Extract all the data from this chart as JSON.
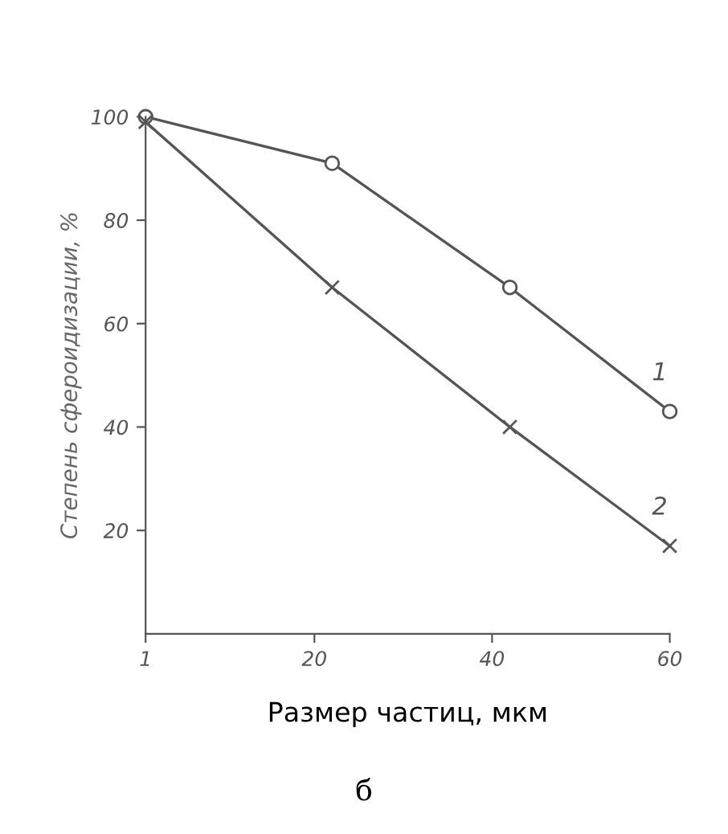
{
  "chart_data": {
    "type": "line",
    "xlabel": "Размер частиц, мкм",
    "ylabel": "Степень сфероидизации, %",
    "x": [
      1,
      22,
      42,
      60
    ],
    "series": [
      {
        "name": "1",
        "color": "#555555",
        "marker": "circle",
        "values": [
          100,
          91,
          67,
          43
        ]
      },
      {
        "name": "2",
        "color": "#555555",
        "marker": "cross",
        "values": [
          99,
          67,
          40,
          17
        ]
      }
    ],
    "xlim": [
      1,
      60
    ],
    "xticks": [
      1,
      20,
      40,
      60
    ],
    "ylim": [
      0,
      100
    ],
    "yticks": [
      20,
      40,
      60,
      80,
      100
    ],
    "grid": false,
    "legend": false,
    "annotations": [
      "б"
    ]
  }
}
